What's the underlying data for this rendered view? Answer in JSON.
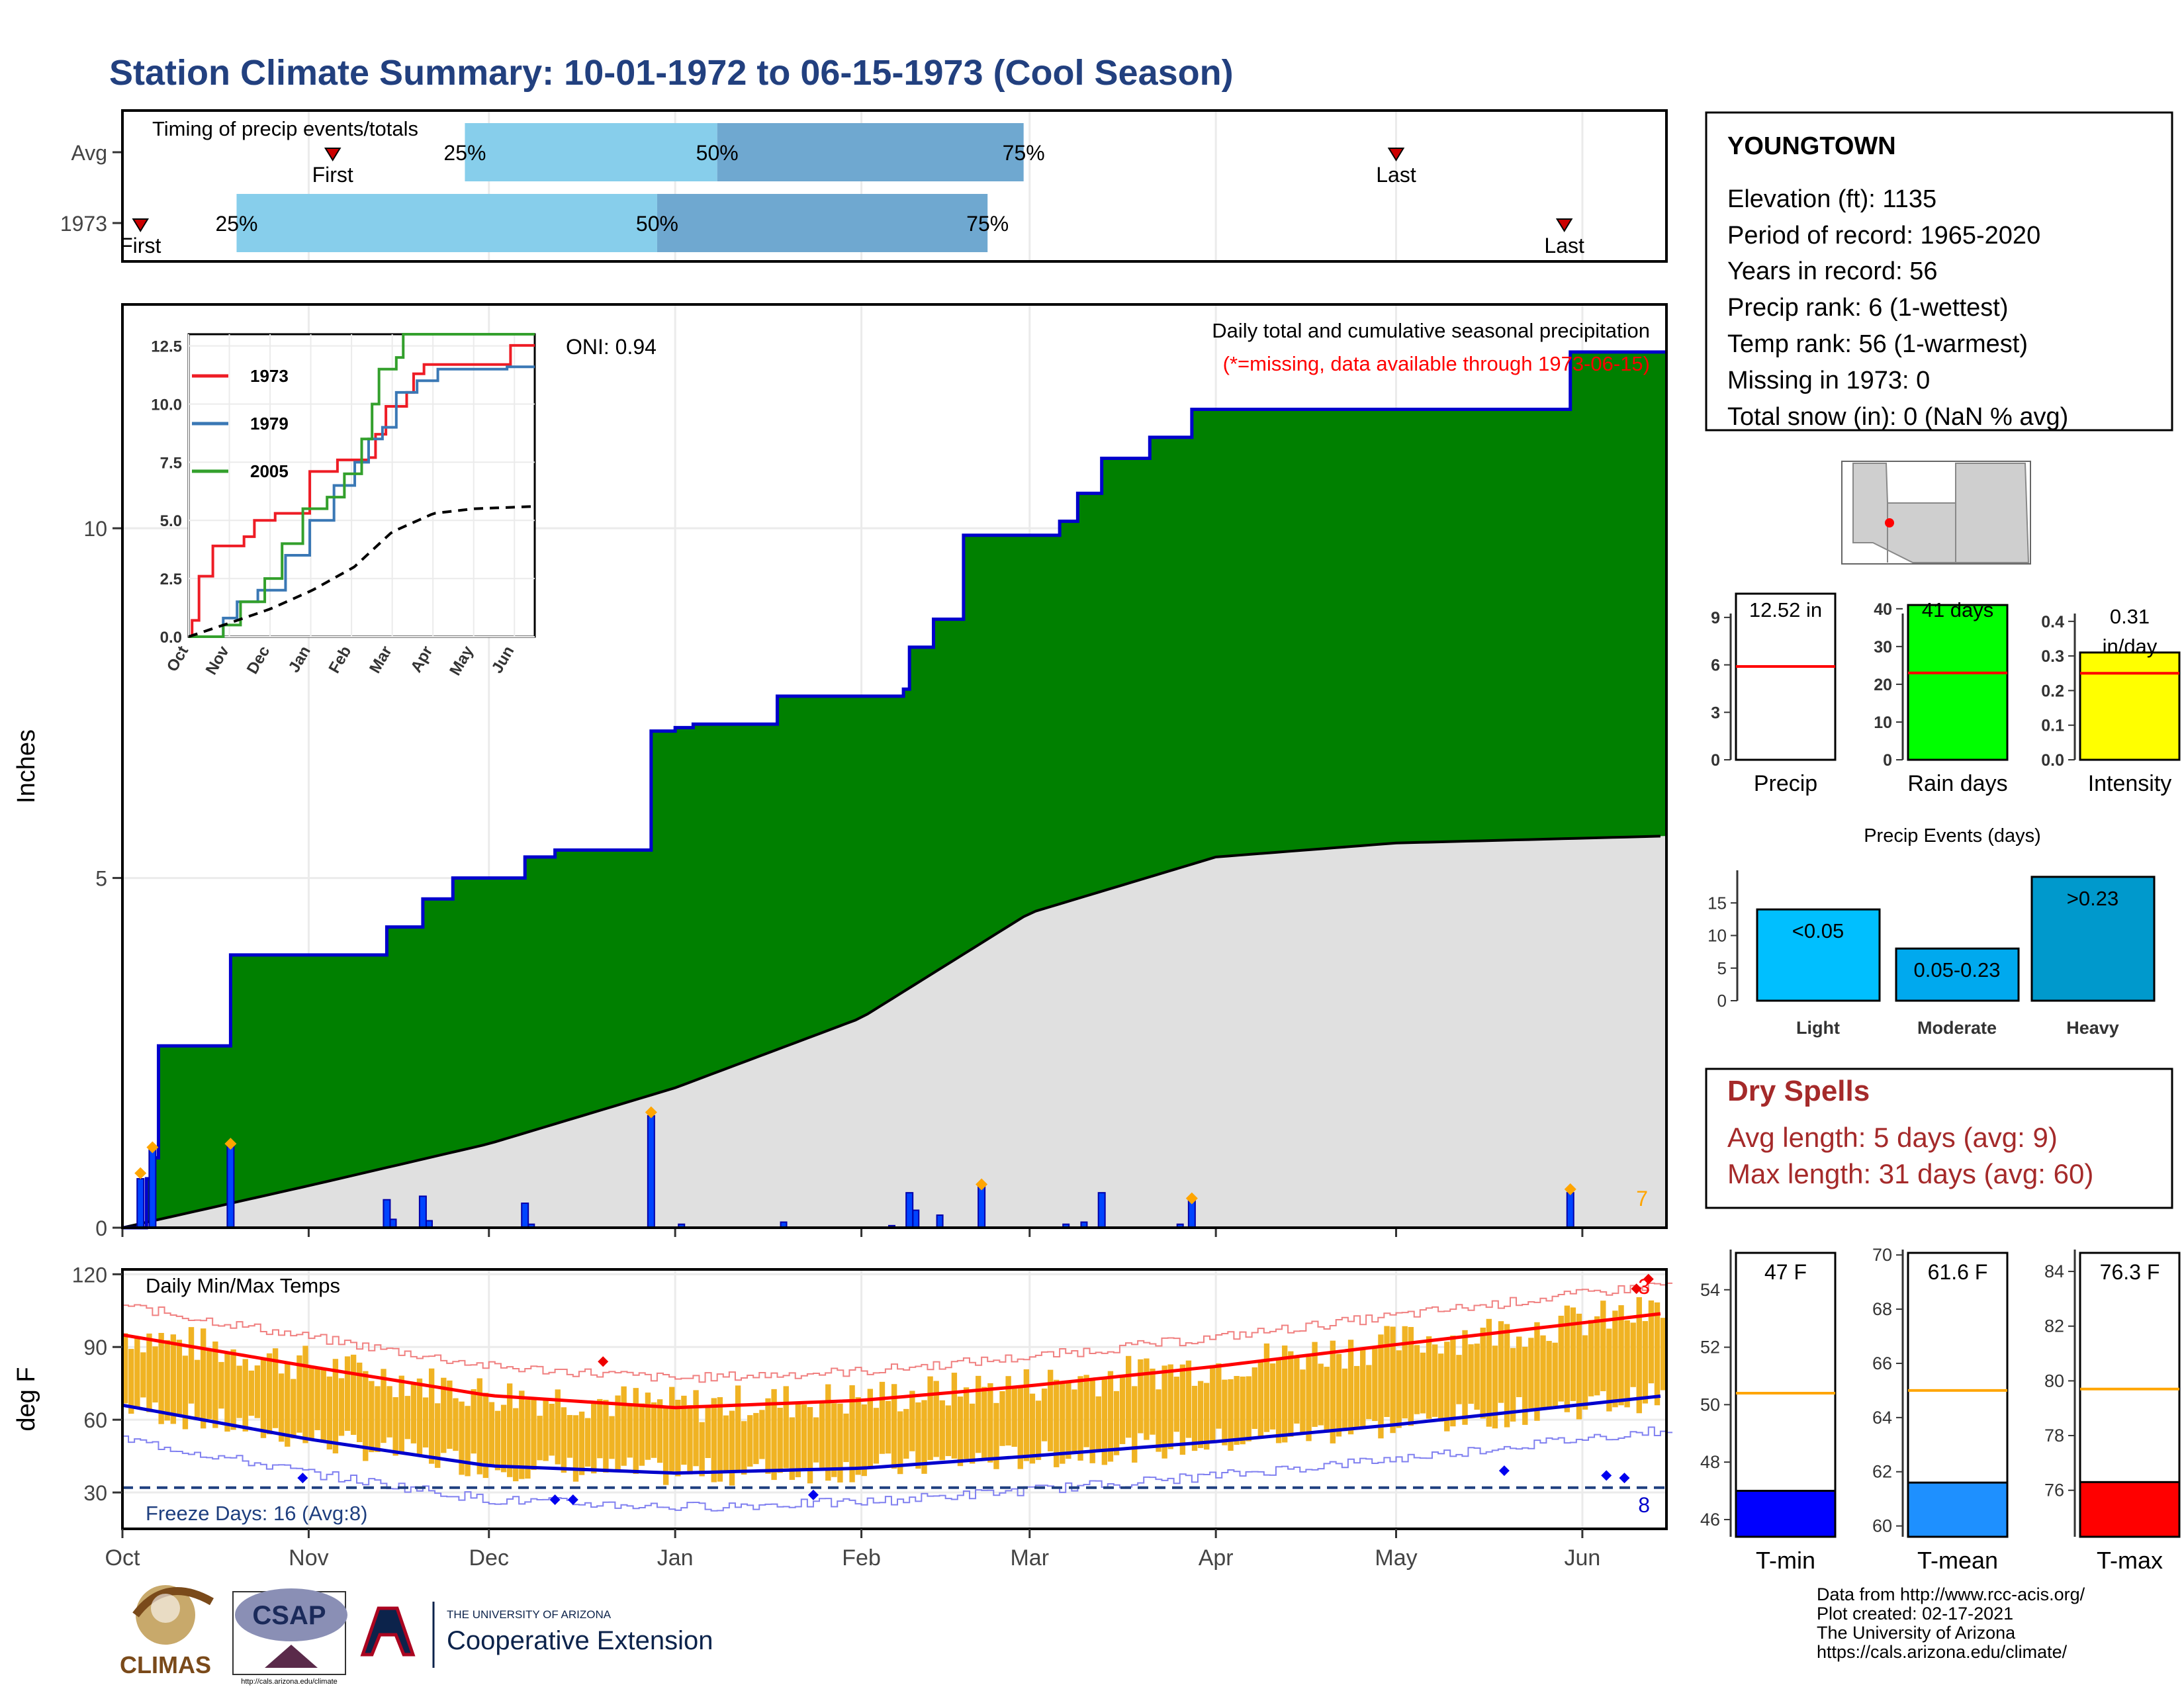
{
  "page": {
    "title": "Station Climate Summary: 10-01-1972 to 06-15-1973 (Cool Season)"
  },
  "colors": {
    "green": "#008000",
    "blue_line": "#0000cc",
    "gray_fill": "#e0e0e0",
    "temp_bar": "#f0b323",
    "tmax_line": "#ff0000",
    "tmin_line": "#0000cc",
    "title": "#22407f",
    "dry": "#a52a2a",
    "q1": "#87ceeb",
    "q2": "#6fa8d0"
  },
  "months": [
    "Oct",
    "Nov",
    "Dec",
    "Jan",
    "Feb",
    "Mar",
    "Apr",
    "May",
    "Jun"
  ],
  "timing": {
    "title": "Timing of precip events/totals",
    "rows": [
      {
        "label": "Avg",
        "first": "Nov 05",
        "p25": "Nov 27",
        "p50": "Jan 08",
        "p75": "Feb 28",
        "last": "May 01",
        "first_label": "First",
        "last_label": "Last",
        "p25_label": "25%",
        "p50_label": "50%",
        "p75_label": "75%"
      },
      {
        "label": "1973",
        "first": "Oct 04",
        "p25": "Oct 20",
        "p50": "Dec 29",
        "p75": "Feb 22",
        "last": "May 29",
        "first_label": "First",
        "last_label": "Last",
        "p25_label": "25%",
        "p50_label": "50%",
        "p75_label": "75%"
      }
    ]
  },
  "station": {
    "name": "YOUNGTOWN",
    "lines": [
      "Elevation (ft): 1135",
      "Period of record: 1965-2020",
      "Years in record: 56",
      "Precip rank: 6 (1-wettest)",
      "Temp rank: 56 (1-warmest)",
      "Missing in 1973: 0",
      "Total snow (in): 0 (NaN % avg)"
    ]
  },
  "precip_panel": {
    "ylabel": "Inches",
    "oni": "ONI: 0.94",
    "note1": "Daily total and cumulative seasonal precipitation",
    "note2": "(*=missing, data available through 1973-06-15)",
    "corner_count": "7"
  },
  "inset": {
    "legend": [
      "1973",
      "1979",
      "2005"
    ],
    "yticks": [
      "0.0",
      "2.5",
      "5.0",
      "7.5",
      "10.0",
      "12.5"
    ]
  },
  "mini_bars": [
    {
      "label": "Precip",
      "value_label": "12.52 in",
      "value": 12.52,
      "avg": 5.9,
      "ymax": 10.5,
      "ticks": [
        "0",
        "3",
        "6",
        "9"
      ],
      "color": "#ffffff"
    },
    {
      "label": "Rain days",
      "value_label": "41 days",
      "value": 41,
      "avg": 23,
      "ymax": 44,
      "ticks": [
        "0",
        "10",
        "20",
        "30",
        "40"
      ],
      "color": "#00ff00"
    },
    {
      "label": "Intensity",
      "value_label": "0.31 in/day",
      "value": 0.31,
      "avg": 0.25,
      "ymax": 0.48,
      "ticks": [
        "0.0",
        "0.1",
        "0.2",
        "0.3",
        "0.4"
      ],
      "color": "#ffff00"
    }
  ],
  "events": {
    "title": "Precip Events (days)",
    "ticks": [
      "0",
      "5",
      "10",
      "15"
    ],
    "bars": [
      {
        "name": "Light",
        "label": "<0.05",
        "value": 14,
        "color": "#00bfff"
      },
      {
        "name": "Moderate",
        "label": "0.05-0.23",
        "value": 8,
        "color": "#00a9ee"
      },
      {
        "name": "Heavy",
        "label": ">0.23",
        "value": 19,
        "color": "#0099cc"
      }
    ]
  },
  "dry_spells": {
    "title": "Dry Spells",
    "line1": "Avg length: 5 days (avg: 9)",
    "line2": "Max length: 31 days (avg: 60)"
  },
  "temp_panel": {
    "ylabel": "deg F",
    "title": "Daily Min/Max Temps",
    "yticks": [
      "30",
      "60",
      "90",
      "120"
    ],
    "freeze": "Freeze Days: 16 (Avg:8)",
    "corner_hi": "3",
    "corner_lo": "8"
  },
  "temp_bars": [
    {
      "label": "T-min",
      "value_label": "47 F",
      "value": 47,
      "avg": 50.4,
      "ymin": 45.4,
      "ymax": 55.4,
      "ticks": [
        "46",
        "48",
        "50",
        "52",
        "54"
      ],
      "color": "#0000ff"
    },
    {
      "label": "T-mean",
      "value_label": "61.6 F",
      "value": 61.6,
      "avg": 65,
      "ymin": 59.6,
      "ymax": 70.2,
      "ticks": [
        "60",
        "62",
        "64",
        "66",
        "68",
        "70"
      ],
      "color": "#1e90ff"
    },
    {
      "label": "T-max",
      "value_label": "76.3 F",
      "value": 76.3,
      "avg": 79.7,
      "ymin": 74.3,
      "ymax": 84.8,
      "ticks": [
        "76",
        "78",
        "80",
        "82",
        "84"
      ],
      "color": "#ff0000"
    }
  ],
  "footer": {
    "lines": [
      "Data from http://www.rcc-acis.org/",
      "Plot created: 02-17-2021",
      "The University of Arizona",
      "https://cals.arizona.edu/climate/"
    ],
    "logo1": "CLIMAS",
    "logo2": "CSAP",
    "logo2_sub": "http://cals.arizona.edu/climate",
    "logo3a": "THE UNIVERSITY OF ARIZONA",
    "logo3b": "Cooperative Extension"
  },
  "chart_data": {
    "type": "area",
    "x_range": [
      "1972-10-01",
      "1973-06-15"
    ],
    "cumulative_precip_1973": [
      {
        "date": "1972-10-05",
        "value": 0.7
      },
      {
        "date": "1972-10-06",
        "value": 1.0
      },
      {
        "date": "1972-10-07",
        "value": 2.6
      },
      {
        "date": "1972-10-19",
        "value": 3.9
      },
      {
        "date": "1972-11-14",
        "value": 4.3
      },
      {
        "date": "1972-11-20",
        "value": 4.7
      },
      {
        "date": "1972-11-25",
        "value": 5.0
      },
      {
        "date": "1972-12-07",
        "value": 5.3
      },
      {
        "date": "1972-12-12",
        "value": 5.4
      },
      {
        "date": "1972-12-28",
        "value": 7.1
      },
      {
        "date": "1973-01-01",
        "value": 7.15
      },
      {
        "date": "1973-01-04",
        "value": 7.2
      },
      {
        "date": "1973-01-18",
        "value": 7.6
      },
      {
        "date": "1973-02-08",
        "value": 7.7
      },
      {
        "date": "1973-02-09",
        "value": 8.3
      },
      {
        "date": "1973-02-13",
        "value": 8.7
      },
      {
        "date": "1973-02-18",
        "value": 9.9
      },
      {
        "date": "1973-03-06",
        "value": 10.1
      },
      {
        "date": "1973-03-09",
        "value": 10.5
      },
      {
        "date": "1973-03-13",
        "value": 11.0
      },
      {
        "date": "1973-03-21",
        "value": 11.3
      },
      {
        "date": "1973-03-28",
        "value": 11.7
      },
      {
        "date": "1973-05-30",
        "value": 12.52
      }
    ],
    "average_cumulative": [
      {
        "date": "1972-10-01",
        "value": 0.0
      },
      {
        "date": "1972-11-01",
        "value": 0.6
      },
      {
        "date": "1972-12-01",
        "value": 1.2
      },
      {
        "date": "1973-01-01",
        "value": 2.0
      },
      {
        "date": "1973-02-01",
        "value": 3.0
      },
      {
        "date": "1973-03-01",
        "value": 4.5
      },
      {
        "date": "1973-04-01",
        "value": 5.3
      },
      {
        "date": "1973-05-01",
        "value": 5.5
      },
      {
        "date": "1973-06-15",
        "value": 5.6
      }
    ],
    "daily_precip_1973": [
      {
        "date": "1972-10-04",
        "value": 0.7
      },
      {
        "date": "1972-10-06",
        "value": 1.15
      },
      {
        "date": "1972-10-19",
        "value": 1.2
      },
      {
        "date": "1972-11-14",
        "value": 0.4
      },
      {
        "date": "1972-11-20",
        "value": 0.45
      },
      {
        "date": "1972-12-07",
        "value": 0.35
      },
      {
        "date": "1972-12-28",
        "value": 1.6
      },
      {
        "date": "1973-02-09",
        "value": 0.5
      },
      {
        "date": "1973-02-21",
        "value": 0.6
      },
      {
        "date": "1973-03-13",
        "value": 0.5
      },
      {
        "date": "1973-03-28",
        "value": 0.4
      },
      {
        "date": "1973-05-30",
        "value": 0.5
      }
    ],
    "yticks": [
      0,
      5,
      10
    ],
    "ylim": [
      0,
      13.2
    ],
    "ylabel": "Inches",
    "inset_ylim": [
      0,
      13
    ],
    "temperature": {
      "ylim": [
        15,
        122
      ],
      "avg_tmax": [
        {
          "date": "1972-10-01",
          "value": 95
        },
        {
          "date": "1972-11-01",
          "value": 82
        },
        {
          "date": "1972-12-01",
          "value": 70
        },
        {
          "date": "1973-01-01",
          "value": 65
        },
        {
          "date": "1973-02-01",
          "value": 68
        },
        {
          "date": "1973-03-01",
          "value": 74
        },
        {
          "date": "1973-04-01",
          "value": 82
        },
        {
          "date": "1973-05-01",
          "value": 91
        },
        {
          "date": "1973-06-15",
          "value": 104
        }
      ],
      "avg_tmin": [
        {
          "date": "1972-10-01",
          "value": 66
        },
        {
          "date": "1972-11-01",
          "value": 52
        },
        {
          "date": "1972-12-01",
          "value": 41
        },
        {
          "date": "1973-01-01",
          "value": 38
        },
        {
          "date": "1973-02-01",
          "value": 40
        },
        {
          "date": "1973-03-01",
          "value": 45
        },
        {
          "date": "1973-04-01",
          "value": 51
        },
        {
          "date": "1973-05-01",
          "value": 58
        },
        {
          "date": "1973-06-15",
          "value": 70
        }
      ],
      "freeze_line": 32
    }
  }
}
